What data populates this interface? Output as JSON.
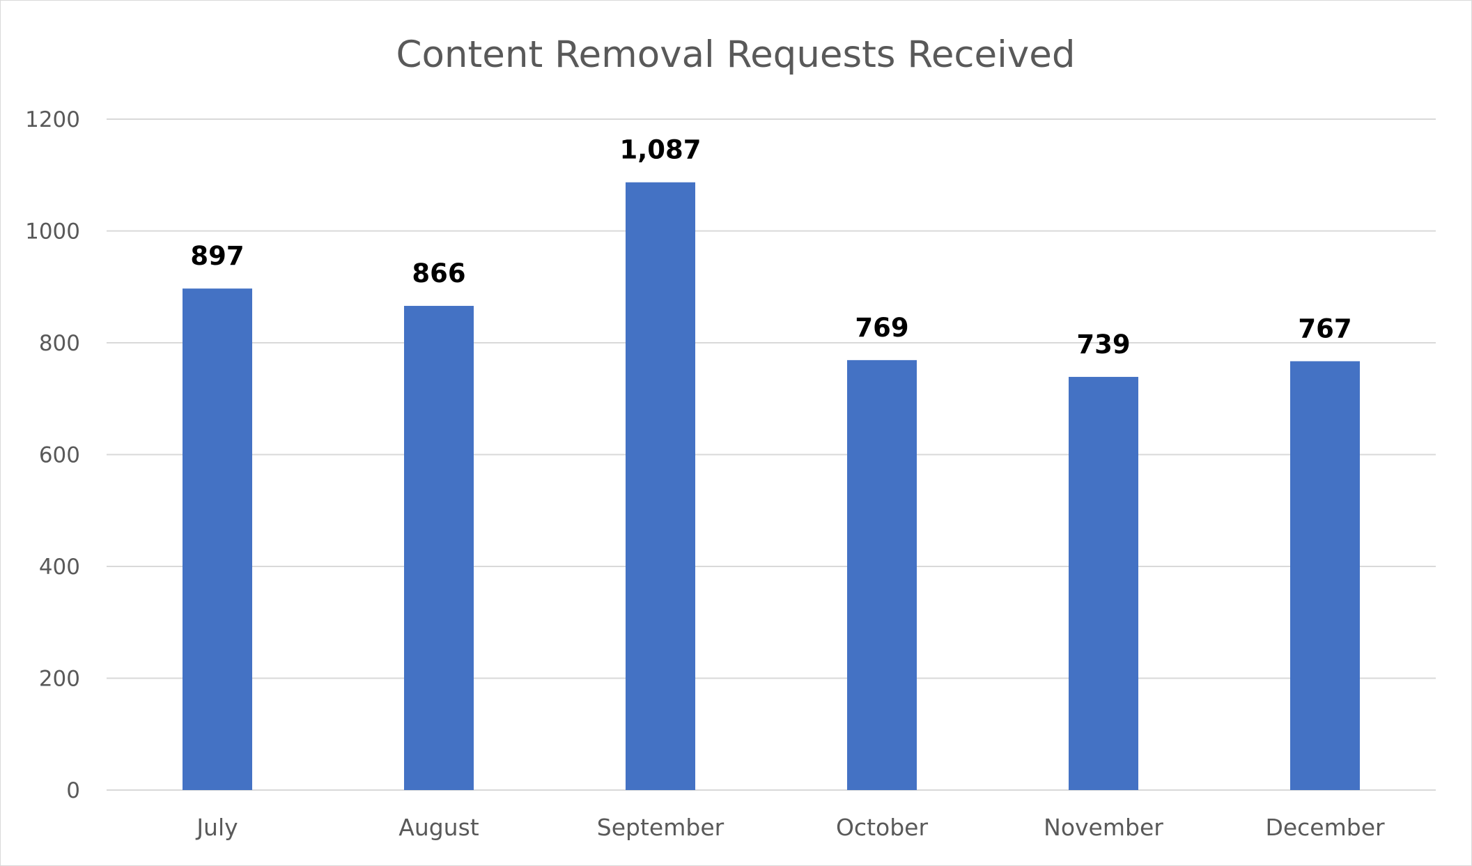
{
  "chart_data": {
    "type": "bar",
    "title": "Content Removal Requests Received",
    "categories": [
      "July",
      "August",
      "September",
      "October",
      "November",
      "December"
    ],
    "values": [
      897,
      866,
      1087,
      769,
      739,
      767
    ],
    "data_labels": [
      "897",
      "866",
      "1,087",
      "769",
      "739",
      "767"
    ],
    "ylim": [
      0,
      1200
    ],
    "yticks": [
      "0",
      "200",
      "400",
      "600",
      "800",
      "1000",
      "1200"
    ],
    "ytick_values": [
      0,
      200,
      400,
      600,
      800,
      1000,
      1200
    ],
    "grid": true,
    "legend": "none",
    "bar_color": "#4472C4",
    "grid_color": "#d9d9d9"
  }
}
